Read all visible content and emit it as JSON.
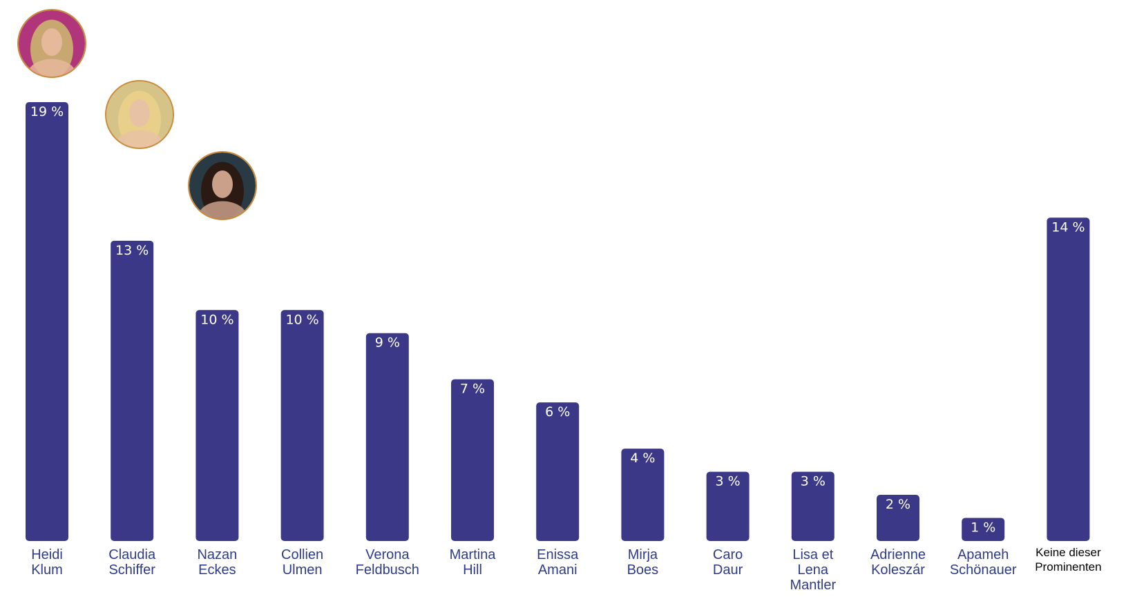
{
  "chart_data": {
    "type": "bar",
    "categories": [
      "Heidi Klum",
      "Claudia Schiffer",
      "Nazan Eckes",
      "Collien Ulmen",
      "Verona Feldbusch",
      "Martina Hill",
      "Enissa Amani",
      "Mirja Boes",
      "Caro Daur",
      "Lisa et Lena Mantler",
      "Adrienne Koleszár",
      "Apameh Schönauer",
      "Keine dieser Prominenten"
    ],
    "category_lines": [
      [
        "Heidi",
        "Klum"
      ],
      [
        "Claudia",
        "Schiffer"
      ],
      [
        "Nazan",
        "Eckes"
      ],
      [
        "Collien",
        "Ulmen"
      ],
      [
        "Verona",
        "Feldbusch"
      ],
      [
        "Martina",
        "Hill"
      ],
      [
        "Enissa",
        "Amani"
      ],
      [
        "Mirja",
        "Boes"
      ],
      [
        "Caro",
        "Daur"
      ],
      [
        "Lisa et",
        "Lena",
        "Mantler"
      ],
      [
        "Adrienne",
        "Koleszár"
      ],
      [
        "Apameh",
        "Schönauer"
      ],
      [
        "Keine dieser",
        "Prominenten"
      ]
    ],
    "values": [
      19,
      13,
      10,
      10,
      9,
      7,
      6,
      4,
      3,
      3,
      2,
      1,
      14
    ],
    "value_labels": [
      "19 %",
      "13 %",
      "10 %",
      "10 %",
      "9 %",
      "7 %",
      "6 %",
      "4 %",
      "3 %",
      "3 %",
      "2 %",
      "1 %",
      "14 %"
    ],
    "unit": "%",
    "title": "",
    "xlabel": "",
    "ylabel": "",
    "ylim": [
      0,
      19
    ],
    "grid": false,
    "bar_color": "#3b3887",
    "label_color": "#2e3a8c",
    "photo_markers": [
      {
        "category": "Heidi Klum",
        "ring_color": "#c98a3a",
        "bg_color": "#b0357a",
        "hair_color": "#c9a770",
        "skin_color": "#e6b99a"
      },
      {
        "category": "Claudia Schiffer",
        "ring_color": "#c98a3a",
        "bg_color": "#d6c387",
        "hair_color": "#e8d08a",
        "skin_color": "#e8c2a5"
      },
      {
        "category": "Nazan Eckes",
        "ring_color": "#c98a3a",
        "bg_color": "#2a3a44",
        "hair_color": "#2b1a14",
        "skin_color": "#caa08a"
      }
    ]
  }
}
